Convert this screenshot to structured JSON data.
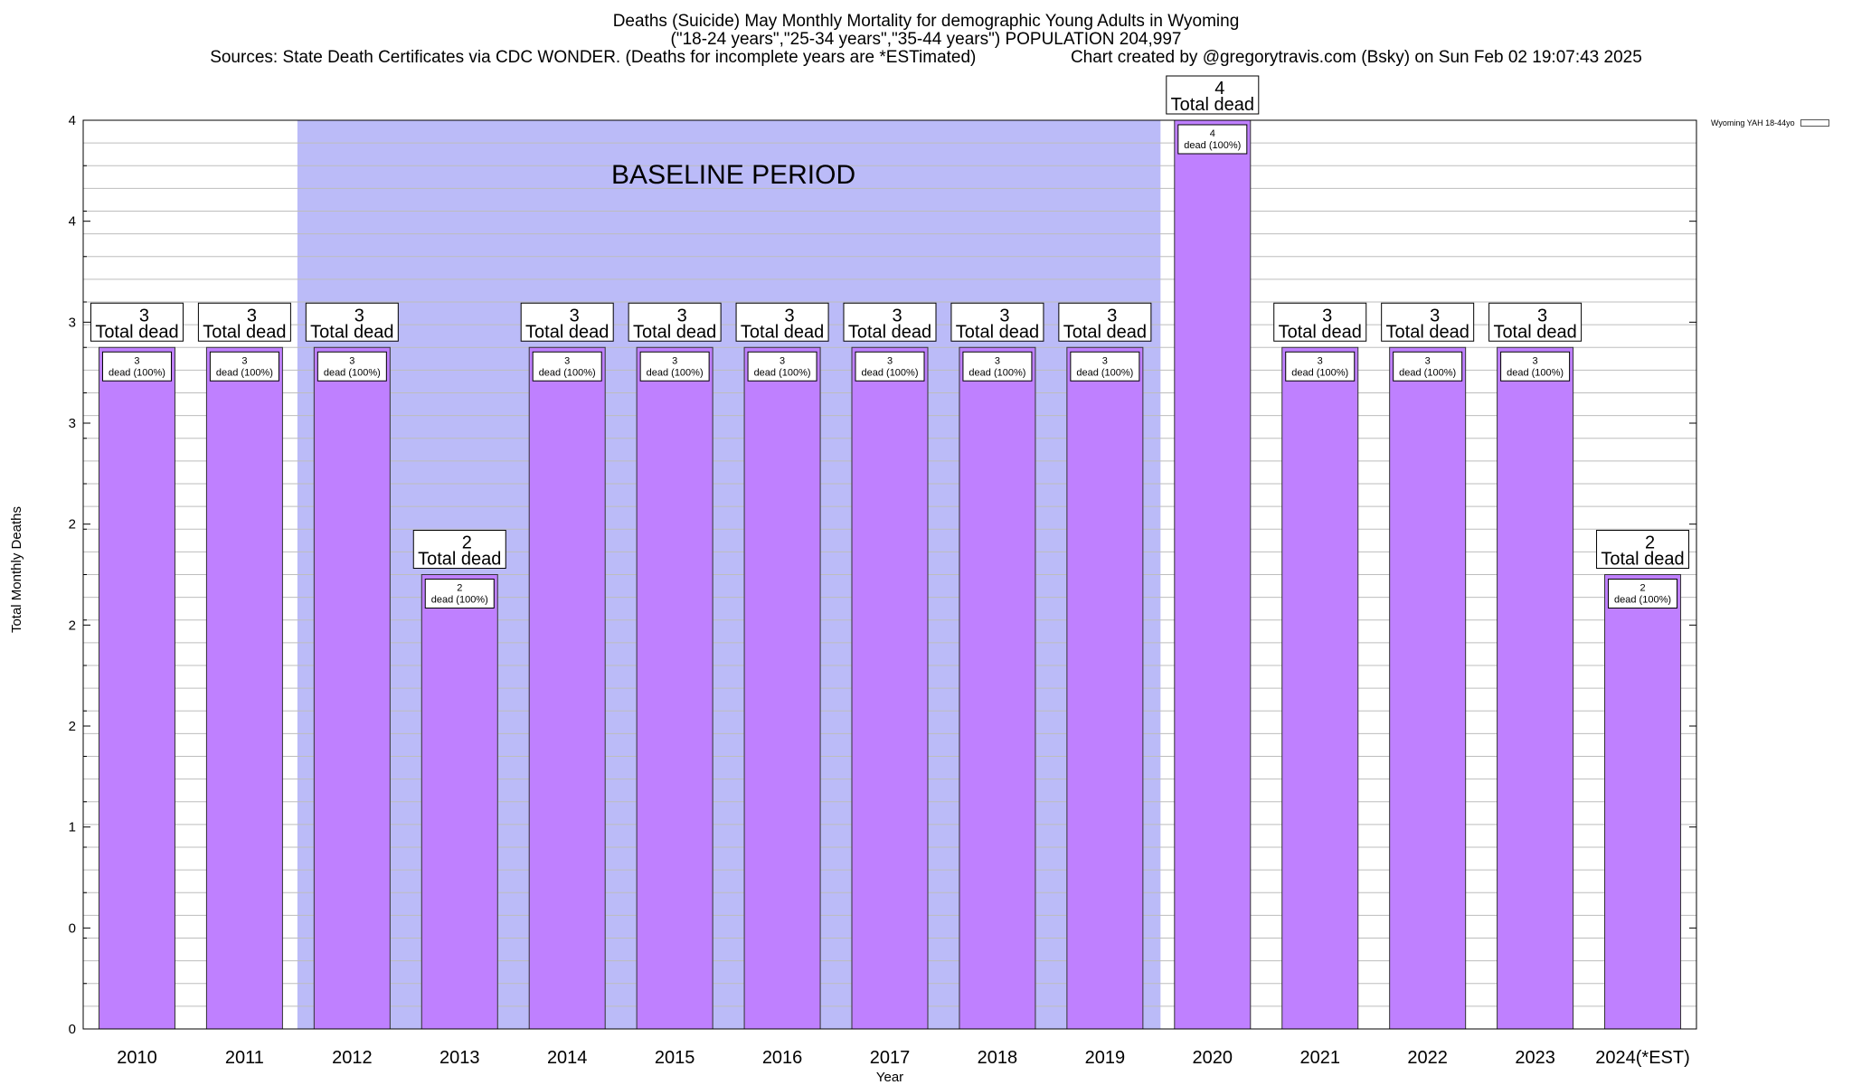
{
  "header": {
    "title_line1": "Deaths (Suicide) May Monthly Mortality for demographic Young Adults in Wyoming",
    "title_line2": "(\"18-24 years\",\"25-34 years\",\"35-44 years\") POPULATION 204,997",
    "sources": "Sources: State Death Certificates via CDC WONDER. (Deaths for incomplete years are *ESTimated)",
    "credit": "Chart created by @gregorytravis.com (Bsky) on Sun Feb 02 19:07:43 2025"
  },
  "colors": {
    "bar": "#bf80ff",
    "baseline_band": "#bbbbf8",
    "grid": "#bdbdbd"
  },
  "chart_data": {
    "type": "bar",
    "title": "Deaths (Suicide) May Monthly Mortality for demographic Young Adults in Wyoming",
    "xlabel": "Year",
    "ylabel": "Total Monthly Deaths",
    "categories": [
      "2010",
      "2011",
      "2012",
      "2013",
      "2014",
      "2015",
      "2016",
      "2017",
      "2018",
      "2019",
      "2020",
      "2021",
      "2022",
      "2023",
      "2024(*EST)"
    ],
    "series": [
      {
        "name": "Wyoming YAH 18-44yo",
        "values": [
          3,
          3,
          3,
          2,
          3,
          3,
          3,
          3,
          3,
          3,
          4,
          3,
          3,
          3,
          2
        ]
      }
    ],
    "bar_labels": {
      "total_suffix": "Total dead",
      "inner_suffix": "dead (100%)"
    },
    "y_tick_labels": [
      "0",
      "0",
      "1",
      "2",
      "2",
      "2",
      "3",
      "3",
      "4",
      "4"
    ],
    "ylim": [
      0,
      4
    ],
    "grid": true,
    "legend_position": "top-right",
    "annotations": [
      {
        "text": "BASELINE PERIOD",
        "from_category": "2012",
        "to_category": "2019"
      }
    ]
  }
}
